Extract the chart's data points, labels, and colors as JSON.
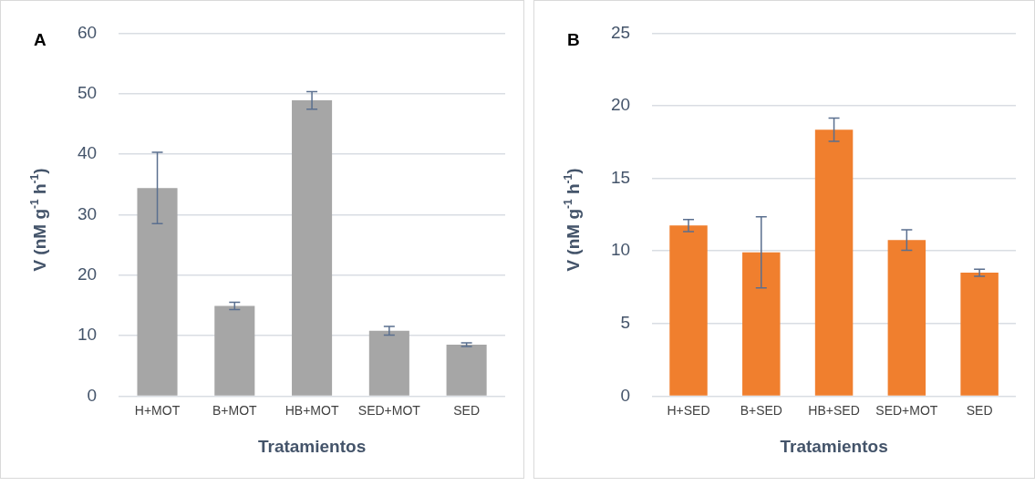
{
  "chart_data": [
    {
      "type": "bar",
      "annotations": [
        "A"
      ],
      "xlabel": "Tratamientos",
      "ylabel": "V (nM g$^{-1}$ h$^{-1}$)",
      "categories": [
        "H+MOT",
        "B+MOT",
        "HB+MOT",
        "SED+MOT",
        "SED"
      ],
      "values": [
        34.4,
        14.9,
        48.9,
        10.8,
        8.5
      ],
      "errors": [
        5.9,
        0.6,
        1.45,
        0.7,
        0.3
      ],
      "color": "#a6a6a6",
      "ylim": [
        0,
        60
      ],
      "yticks": [
        0,
        10,
        20,
        30,
        40,
        50,
        60
      ],
      "grid": "y",
      "legend": false
    },
    {
      "type": "bar",
      "annotations": [
        "B"
      ],
      "xlabel": "Tratamientos",
      "ylabel": "V (nM g$^{-1}$ h$^{-1}$)",
      "categories": [
        "H+SED",
        "B+SED",
        "HB+SED",
        "SED+MOT",
        "SED"
      ],
      "values": [
        11.75,
        9.9,
        18.35,
        10.75,
        8.5
      ],
      "errors": [
        0.42,
        2.45,
        0.8,
        0.7,
        0.24
      ],
      "color": "#f07f2e",
      "ylim": [
        0,
        25
      ],
      "yticks": [
        0,
        5,
        10,
        15,
        20,
        25
      ],
      "grid": "y",
      "legend": false
    }
  ]
}
